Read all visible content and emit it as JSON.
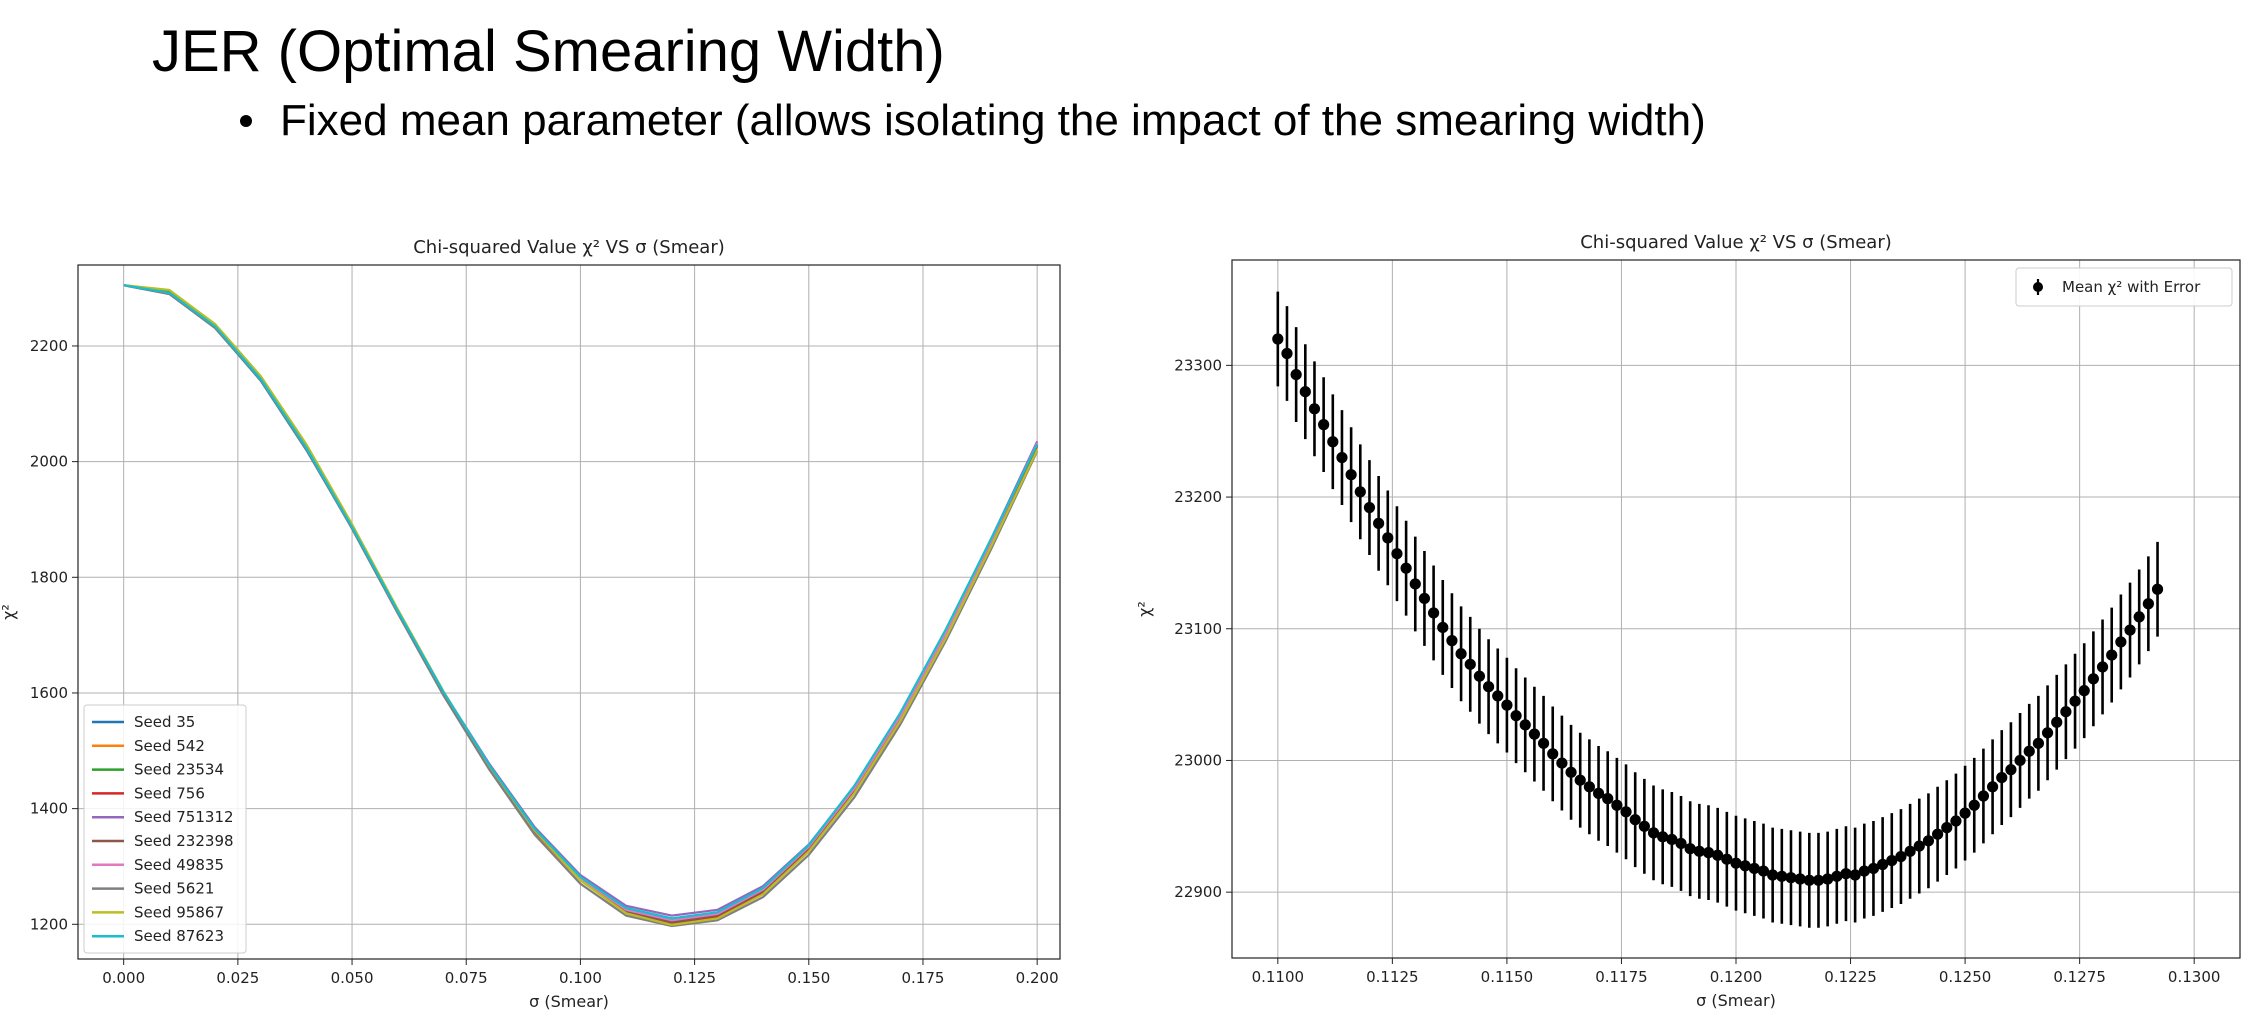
{
  "slide": {
    "title": "JER (Optimal Smearing Width)",
    "bullet": "Fixed mean parameter (allows isolating the impact of the smearing width)"
  },
  "chart_data": [
    {
      "type": "line",
      "title": "Chi-squared Value χ² VS σ (Smear)",
      "xlabel": "σ (Smear)",
      "ylabel": "χ²",
      "xlim": [
        -0.01,
        0.205
      ],
      "ylim": [
        1140,
        2340
      ],
      "xticks": [
        "0.000",
        "0.025",
        "0.050",
        "0.075",
        "0.100",
        "0.125",
        "0.150",
        "0.175",
        "0.200"
      ],
      "yticks": [
        "1200",
        "1400",
        "1600",
        "1800",
        "2000",
        "2200"
      ],
      "grid": true,
      "legend_position": "lower-left",
      "x": [
        0.0,
        0.01,
        0.02,
        0.03,
        0.04,
        0.05,
        0.06,
        0.07,
        0.08,
        0.09,
        0.1,
        0.11,
        0.12,
        0.13,
        0.14,
        0.15,
        0.16,
        0.17,
        0.18,
        0.19,
        0.2
      ],
      "series": [
        {
          "name": "Seed 35",
          "color": "#1f77b4",
          "values": [
            2305,
            2290,
            2232,
            2140,
            2020,
            1885,
            1740,
            1600,
            1475,
            1365,
            1282,
            1228,
            1210,
            1220,
            1262,
            1335,
            1435,
            1560,
            1705,
            1865,
            2030
          ]
        },
        {
          "name": "Seed 542",
          "color": "#ff7f0e",
          "values": [
            2305,
            2295,
            2236,
            2146,
            2028,
            1890,
            1742,
            1600,
            1472,
            1360,
            1276,
            1220,
            1200,
            1212,
            1255,
            1330,
            1432,
            1556,
            1700,
            1860,
            2025
          ]
        },
        {
          "name": "Seed 23534",
          "color": "#2ca02c",
          "values": [
            2305,
            2293,
            2234,
            2143,
            2024,
            1887,
            1741,
            1600,
            1474,
            1362,
            1279,
            1224,
            1205,
            1216,
            1258,
            1332,
            1433,
            1558,
            1702,
            1862,
            2028
          ]
        },
        {
          "name": "Seed 756",
          "color": "#d62728",
          "values": [
            2305,
            2291,
            2233,
            2145,
            2026,
            1888,
            1742,
            1601,
            1474,
            1361,
            1277,
            1221,
            1202,
            1214,
            1256,
            1331,
            1432,
            1557,
            1702,
            1862,
            2030
          ]
        },
        {
          "name": "Seed 751312",
          "color": "#9467bd",
          "values": [
            2305,
            2292,
            2233,
            2142,
            2022,
            1886,
            1742,
            1602,
            1478,
            1368,
            1285,
            1232,
            1215,
            1225,
            1266,
            1338,
            1438,
            1562,
            1708,
            1868,
            2035
          ]
        },
        {
          "name": "Seed 232398",
          "color": "#8c564b",
          "values": [
            2305,
            2290,
            2232,
            2143,
            2025,
            1887,
            1741,
            1600,
            1473,
            1362,
            1278,
            1222,
            1203,
            1215,
            1257,
            1332,
            1433,
            1557,
            1701,
            1861,
            2028
          ]
        },
        {
          "name": "Seed 49835",
          "color": "#e377c2",
          "values": [
            2305,
            2291,
            2233,
            2144,
            2025,
            1888,
            1742,
            1601,
            1475,
            1363,
            1280,
            1225,
            1207,
            1218,
            1260,
            1334,
            1435,
            1559,
            1703,
            1864,
            2032
          ]
        },
        {
          "name": "Seed 5621",
          "color": "#7f7f7f",
          "values": [
            2305,
            2290,
            2231,
            2141,
            2021,
            1884,
            1738,
            1596,
            1468,
            1355,
            1270,
            1215,
            1197,
            1207,
            1247,
            1320,
            1420,
            1545,
            1690,
            1850,
            2018
          ]
        },
        {
          "name": "Seed 95867",
          "color": "#bcbd22",
          "values": [
            2305,
            2297,
            2238,
            2148,
            2030,
            1892,
            1745,
            1603,
            1475,
            1362,
            1276,
            1219,
            1199,
            1210,
            1252,
            1326,
            1427,
            1551,
            1695,
            1855,
            2020
          ]
        },
        {
          "name": "Seed 87623",
          "color": "#17becf",
          "values": [
            2305,
            2292,
            2234,
            2143,
            2024,
            1887,
            1742,
            1602,
            1476,
            1365,
            1282,
            1228,
            1210,
            1221,
            1263,
            1337,
            1440,
            1565,
            1710,
            1868,
            2030
          ]
        }
      ]
    },
    {
      "type": "scatter",
      "title": "Chi-squared Value χ² VS σ (Smear)",
      "xlabel": "σ (Smear)",
      "ylabel": "χ²",
      "xlim": [
        0.109,
        0.131
      ],
      "ylim": [
        22850,
        23380
      ],
      "xticks": [
        "0.1100",
        "0.1125",
        "0.1150",
        "0.1175",
        "0.1200",
        "0.1225",
        "0.1250",
        "0.1275",
        "0.1300"
      ],
      "yticks": [
        "22900",
        "23000",
        "23100",
        "23200",
        "23300"
      ],
      "grid": true,
      "legend_position": "top-right",
      "legend_label": "Mean χ² with Error",
      "marker_color": "#000000",
      "x_start": 0.11,
      "x_step": 0.0002,
      "y": [
        23320,
        23309,
        23293,
        23280,
        23267,
        23255,
        23242,
        23230,
        23217,
        23204,
        23192,
        23180,
        23169,
        23157,
        23146,
        23134,
        23123,
        23112,
        23101,
        23091,
        23081,
        23073,
        23064,
        23056,
        23049,
        23042,
        23034,
        23027,
        23020,
        23013,
        23005,
        22998,
        22991,
        22985,
        22980,
        22975,
        22971,
        22966,
        22961,
        22955,
        22950,
        22945,
        22942,
        22940,
        22937,
        22933,
        22931,
        22930,
        22928,
        22925,
        22922,
        22920,
        22918,
        22916,
        22913,
        22912,
        22911,
        22910,
        22909,
        22909,
        22910,
        22912,
        22914,
        22913,
        22916,
        22918,
        22921,
        22924,
        22927,
        22931,
        22935,
        22939,
        22944,
        22949,
        22954,
        22960,
        22966,
        22973,
        22980,
        22987,
        22993,
        23000,
        23007,
        23013,
        23021,
        23029,
        23037,
        23045,
        23053,
        23062,
        23071,
        23080,
        23090,
        23099,
        23109,
        23119,
        23130
      ],
      "error": 36
    }
  ]
}
